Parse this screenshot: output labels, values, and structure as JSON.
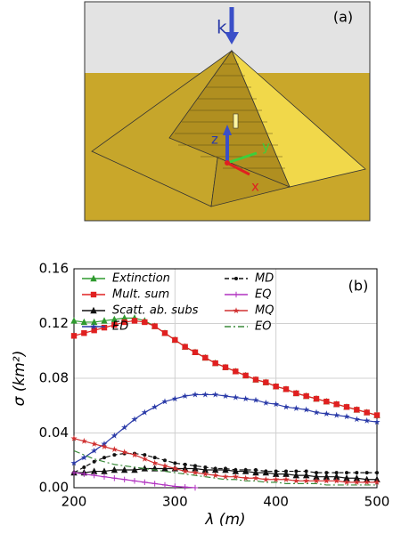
{
  "figure_a": {
    "label": "(a)",
    "k": "k",
    "z": "z",
    "y": "y",
    "x": "x"
  },
  "chart_data": {
    "type": "line",
    "label": "(b)",
    "x_label": "λ (m)",
    "y_label": "σ (km²)",
    "x": [
      200,
      210,
      220,
      230,
      240,
      250,
      260,
      270,
      280,
      290,
      300,
      310,
      320,
      330,
      340,
      350,
      360,
      370,
      380,
      390,
      400,
      410,
      420,
      430,
      440,
      450,
      460,
      470,
      480,
      490,
      500
    ],
    "xlim": [
      200,
      500
    ],
    "xticks": [
      200,
      300,
      400,
      500
    ],
    "ylim": [
      0,
      0.16
    ],
    "yticks": [
      {
        "value": 0,
        "label": "0.00"
      },
      0.04,
      0.08,
      0.12,
      0.16
    ],
    "grid": true,
    "legend": "top",
    "series": [
      {
        "name": "Extinction",
        "color": "#2e9a2e",
        "marker": "triangle",
        "dash": "solid",
        "values": [
          0.122,
          0.121,
          0.121,
          0.122,
          0.123,
          0.124,
          0.124,
          0.122,
          0.118,
          0.113,
          0.108,
          0.103,
          0.099,
          0.095,
          0.091,
          0.088,
          0.085,
          0.082,
          0.079,
          0.077,
          0.074,
          0.072,
          0.069,
          0.067,
          0.065,
          0.063,
          0.061,
          0.059,
          0.057,
          0.055,
          0.053
        ]
      },
      {
        "name": "Mult. sum",
        "color": "#e02020",
        "marker": "square",
        "dash": "solid",
        "values": [
          0.111,
          0.113,
          0.115,
          0.117,
          0.119,
          0.121,
          0.122,
          0.121,
          0.118,
          0.113,
          0.108,
          0.103,
          0.099,
          0.095,
          0.091,
          0.088,
          0.085,
          0.082,
          0.079,
          0.077,
          0.074,
          0.072,
          0.069,
          0.067,
          0.065,
          0.063,
          0.061,
          0.059,
          0.057,
          0.055,
          0.053
        ]
      },
      {
        "name": "Scatt. ab. subs",
        "color": "#111111",
        "marker": "triangle",
        "dash": "solid",
        "values": [
          0.011,
          0.011,
          0.012,
          0.012,
          0.013,
          0.013,
          0.013,
          0.014,
          0.014,
          0.014,
          0.014,
          0.014,
          0.014,
          0.013,
          0.013,
          0.013,
          0.012,
          0.012,
          0.011,
          0.011,
          0.01,
          0.01,
          0.009,
          0.009,
          0.008,
          0.008,
          0.008,
          0.007,
          0.007,
          0.006,
          0.006
        ]
      },
      {
        "name": "ED",
        "color": "#2a3aa8",
        "marker": "star",
        "dash": "solid",
        "values": [
          0.018,
          0.022,
          0.027,
          0.032,
          0.038,
          0.044,
          0.05,
          0.055,
          0.059,
          0.063,
          0.065,
          0.067,
          0.068,
          0.068,
          0.068,
          0.067,
          0.066,
          0.065,
          0.064,
          0.062,
          0.061,
          0.059,
          0.058,
          0.057,
          0.055,
          0.054,
          0.053,
          0.052,
          0.05,
          0.049,
          0.048
        ]
      },
      {
        "name": "MD",
        "color": "#111111",
        "marker": "dot",
        "dash": "dashed",
        "values": [
          0.011,
          0.015,
          0.019,
          0.022,
          0.024,
          0.025,
          0.025,
          0.024,
          0.022,
          0.02,
          0.018,
          0.017,
          0.016,
          0.015,
          0.014,
          0.014,
          0.013,
          0.013,
          0.013,
          0.012,
          0.012,
          0.012,
          0.012,
          0.012,
          0.011,
          0.011,
          0.011,
          0.011,
          0.011,
          0.011,
          0.011
        ]
      },
      {
        "name": "EQ",
        "color": "#b030c0",
        "marker": "plus",
        "dash": "solid",
        "values": [
          0.011,
          0.01,
          0.009,
          0.008,
          0.007,
          0.006,
          0.005,
          0.004,
          0.003,
          0.002,
          0.001,
          0.0005,
          0,
          null,
          null,
          null,
          null,
          null,
          null,
          null,
          null,
          null,
          null,
          null,
          null,
          null,
          null,
          null,
          null,
          null,
          null
        ]
      },
      {
        "name": "MQ",
        "color": "#d03030",
        "marker": "star",
        "dash": "solid",
        "values": [
          0.036,
          0.034,
          0.032,
          0.03,
          0.028,
          0.026,
          0.024,
          0.021,
          0.018,
          0.016,
          0.014,
          0.012,
          0.011,
          0.01,
          0.009,
          0.008,
          0.008,
          0.007,
          0.007,
          0.006,
          0.006,
          0.006,
          0.005,
          0.005,
          0.005,
          0.005,
          0.005,
          0.004,
          0.004,
          0.004,
          0.004
        ]
      },
      {
        "name": "EO",
        "color": "#3a8a3a",
        "marker": "none",
        "dash": "dashdot",
        "values": [
          0.027,
          0.024,
          0.021,
          0.019,
          0.017,
          0.016,
          0.015,
          0.014,
          0.013,
          0.012,
          0.011,
          0.01,
          0.009,
          0.008,
          0.007,
          0.006,
          0.006,
          0.005,
          0.005,
          0.004,
          0.004,
          0.003,
          0.003,
          0.003,
          0.003,
          0.002,
          0.002,
          0.002,
          0.002,
          0.002,
          0.002
        ]
      }
    ]
  }
}
